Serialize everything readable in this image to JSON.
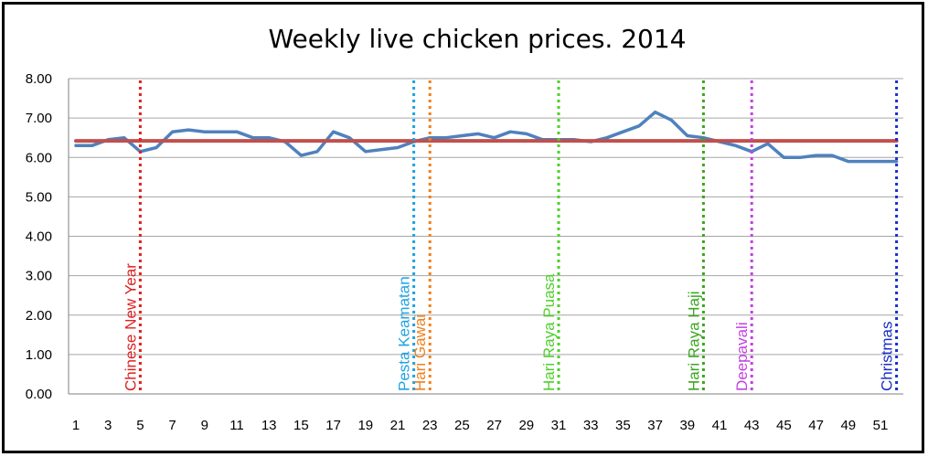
{
  "chart_data": {
    "type": "line",
    "title": "Weekly live chicken prices. 2014",
    "xlabel": "",
    "ylabel": "",
    "xlim": [
      1,
      52
    ],
    "ylim": [
      0,
      8
    ],
    "y_ticks": [
      "0.00",
      "1.00",
      "2.00",
      "3.00",
      "4.00",
      "5.00",
      "6.00",
      "7.00",
      "8.00"
    ],
    "x_ticks": [
      1,
      3,
      5,
      7,
      9,
      11,
      13,
      15,
      17,
      19,
      21,
      23,
      25,
      27,
      29,
      31,
      33,
      35,
      37,
      39,
      41,
      43,
      45,
      47,
      49,
      51
    ],
    "grid": true,
    "series": [
      {
        "color": "#4f81bd",
        "x": [
          1,
          2,
          3,
          4,
          5,
          6,
          7,
          8,
          9,
          10,
          11,
          12,
          13,
          14,
          15,
          16,
          17,
          18,
          19,
          20,
          21,
          22,
          23,
          24,
          25,
          26,
          27,
          28,
          29,
          30,
          31,
          32,
          33,
          34,
          35,
          36,
          37,
          38,
          39,
          40,
          41,
          42,
          43,
          44,
          45,
          46,
          47,
          48,
          49,
          50,
          51,
          52
        ],
        "values": [
          6.3,
          6.3,
          6.45,
          6.5,
          6.15,
          6.25,
          6.65,
          6.7,
          6.65,
          6.65,
          6.65,
          6.5,
          6.5,
          6.4,
          6.05,
          6.15,
          6.65,
          6.5,
          6.15,
          6.2,
          6.25,
          6.4,
          6.5,
          6.5,
          6.55,
          6.6,
          6.5,
          6.65,
          6.6,
          6.45,
          6.45,
          6.45,
          6.4,
          6.5,
          6.65,
          6.8,
          7.15,
          6.95,
          6.55,
          6.5,
          6.4,
          6.3,
          6.15,
          6.35,
          6.0,
          6.0,
          6.05,
          6.05,
          5.9,
          5.9,
          5.9,
          5.9
        ]
      },
      {
        "color": "#c0504d",
        "x": [
          1,
          52
        ],
        "values": [
          6.42,
          6.42
        ]
      }
    ],
    "events": [
      {
        "label": "Chinese New Year",
        "week": 5,
        "color": "#e02020"
      },
      {
        "label": "Pesta Keamatan",
        "week": 22,
        "color": "#1fa3e0"
      },
      {
        "label": "Hari Gawai",
        "week": 23,
        "color": "#f07f1a"
      },
      {
        "label": "Hari Raya Puasa",
        "week": 31,
        "color": "#4fcf2a"
      },
      {
        "label": "Hari Raya Haji",
        "week": 40,
        "color": "#3aa620"
      },
      {
        "label": "Deepavali",
        "week": 43,
        "color": "#c43fe0"
      },
      {
        "label": "Christmas",
        "week": 52,
        "color": "#1a2ec8"
      }
    ]
  }
}
